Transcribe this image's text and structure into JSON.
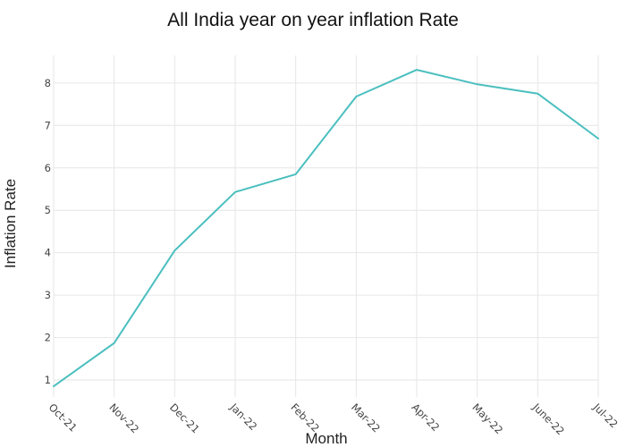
{
  "chart_data": {
    "type": "line",
    "title": "All India year on year inflation Rate",
    "xlabel": "Month",
    "ylabel": "Inflation Rate",
    "categories": [
      "Oct-21",
      "Nov-22",
      "Dec-21",
      "Jan-22",
      "Feb-22",
      "Mar-22",
      "Apr-22",
      "May-22",
      "June-22",
      "Jul-22"
    ],
    "series": [
      {
        "values": [
          0.85,
          1.87,
          4.05,
          5.43,
          5.85,
          7.68,
          8.31,
          7.97,
          7.75,
          6.69
        ]
      }
    ],
    "yticks": [
      1,
      2,
      3,
      4,
      5,
      6,
      7,
      8
    ],
    "ylim": [
      0.6,
      8.65
    ],
    "grid": true,
    "line_color": "#4bbfbf"
  }
}
